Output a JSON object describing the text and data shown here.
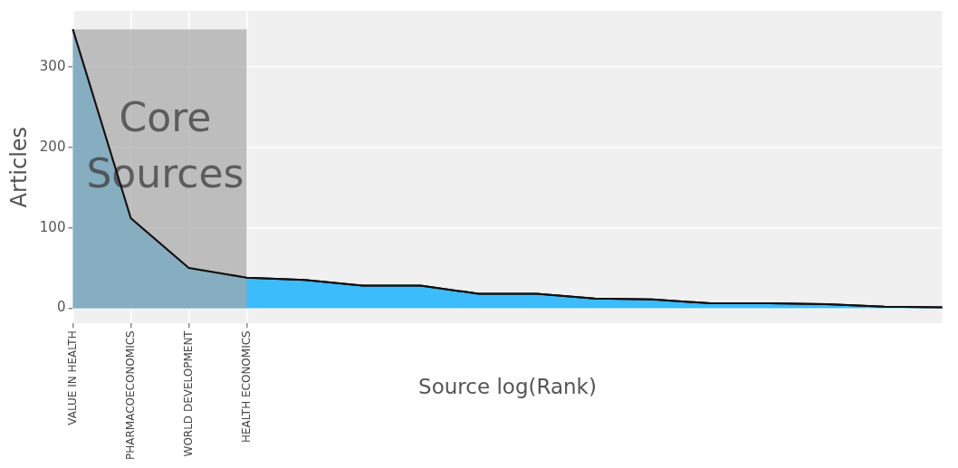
{
  "chart_data": {
    "type": "area",
    "xlabel": "Source log(Rank)",
    "ylabel": "Articles",
    "categories": [
      "VALUE IN HEALTH",
      "PHARMACOECONOMICS",
      "WORLD DEVELOPMENT",
      "HEALTH ECONOMICS",
      null,
      null,
      null,
      null,
      null,
      null,
      null,
      null,
      null,
      null,
      null,
      null
    ],
    "series": [
      {
        "color": "#3dbcfb",
        "values": [
          347,
          112,
          50,
          38,
          35,
          28,
          28,
          18,
          18,
          12,
          11,
          6,
          6,
          5,
          2,
          1
        ]
      }
    ],
    "ylim": [
      -19,
      370
    ],
    "yticks": [
      0,
      100,
      200,
      300
    ],
    "bands": [
      {
        "axis": "x",
        "from": "VALUE IN HEALTH",
        "to": "HEALTH ECONOMICS",
        "label": "Core Sources",
        "color": "#a6a6a6"
      }
    ],
    "grid": true
  }
}
